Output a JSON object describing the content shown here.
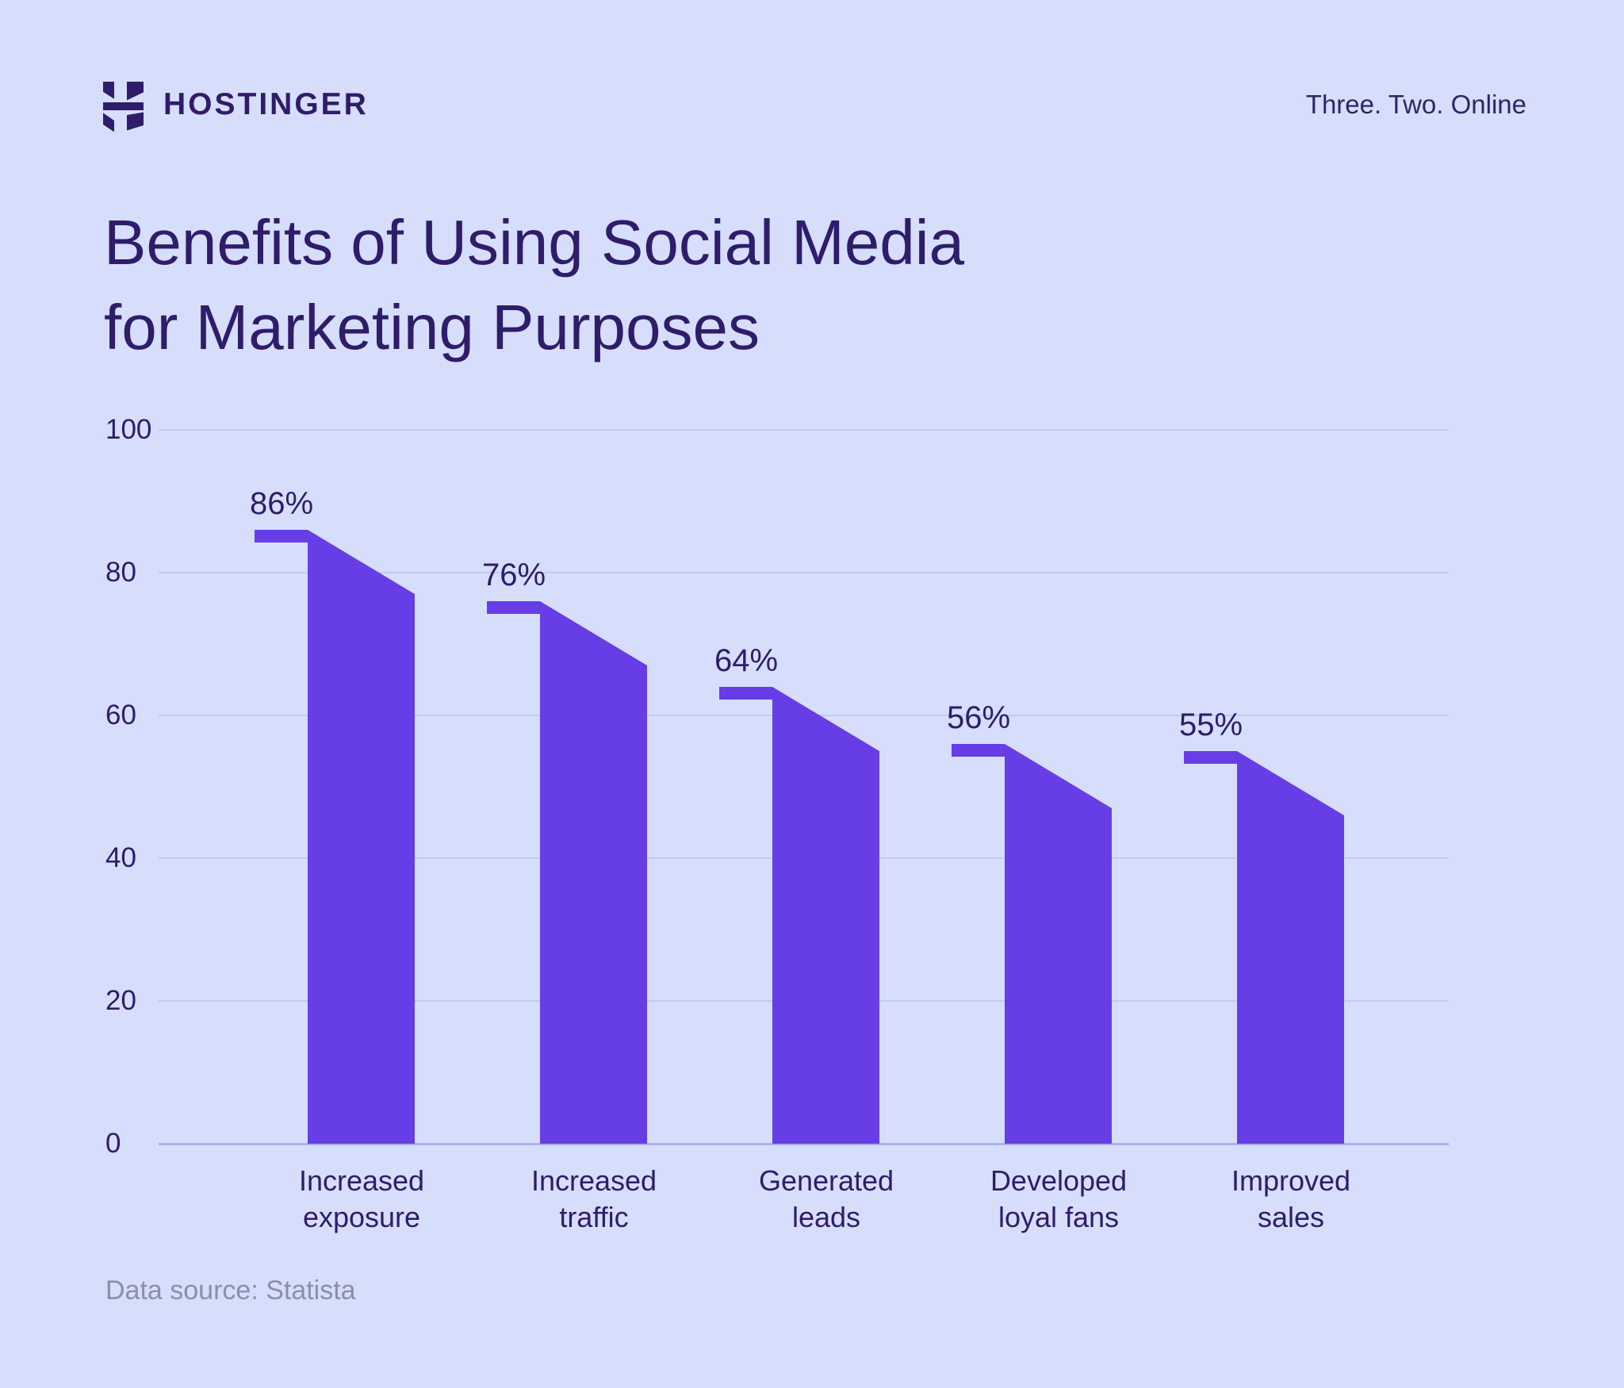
{
  "header": {
    "brand": "HOSTINGER",
    "tagline": "Three. Two. Online"
  },
  "title_lines": [
    "Benefits of Using Social Media",
    "for Marketing Purposes"
  ],
  "footer": {
    "source": "Data source: Statista"
  },
  "colors": {
    "background": "#D6DEFB",
    "bar": "#673DE6",
    "text_dark": "#2F1C6A",
    "gridline": "#C2CAF2",
    "axis_line": "#A9B2EB",
    "muted_text": "#8B8FA9"
  },
  "chart_data": {
    "type": "bar",
    "categories": [
      "Increased exposure",
      "Increased traffic",
      "Generated leads",
      "Developed loyal fans",
      "Improved sales"
    ],
    "values": [
      86,
      76,
      64,
      56,
      55
    ],
    "value_labels": [
      "86%",
      "76%",
      "64%",
      "56%",
      "55%"
    ],
    "title": "Benefits of Using Social Media for Marketing Purposes",
    "xlabel": "",
    "ylabel": "",
    "ylim": [
      0,
      100
    ],
    "yticks": [
      0,
      20,
      40,
      60,
      80,
      100
    ],
    "grid": true,
    "legend": "none",
    "bar_shape": "slanted top with left cap tab"
  }
}
